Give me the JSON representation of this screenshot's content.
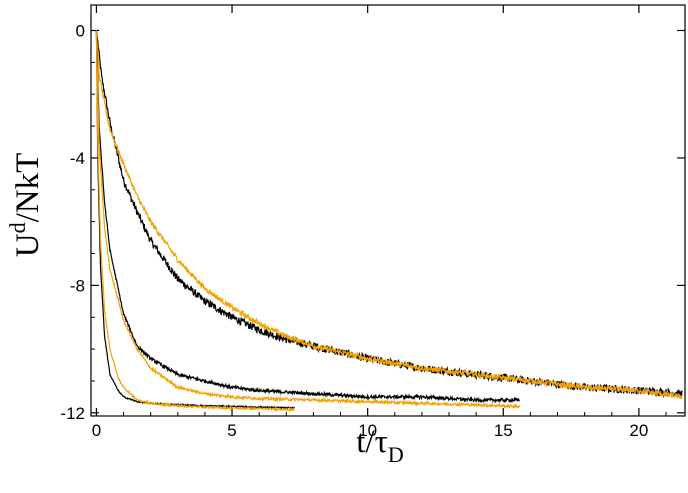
{
  "chart_data": {
    "type": "line",
    "xlabel": {
      "main": "t/τ",
      "sub": "D"
    },
    "ylabel": {
      "main": "U",
      "sup": "d",
      "rest": "/NkT"
    },
    "xlim": [
      -0.2,
      21.7
    ],
    "ylim": [
      -12.1,
      0.8
    ],
    "x_ticks": [
      0,
      5,
      10,
      15,
      20
    ],
    "y_ticks": [
      0,
      -4,
      -8,
      -12
    ],
    "x_tick_labels": [
      "0",
      "5",
      "10",
      "15",
      "20"
    ],
    "y_tick_labels": [
      "0",
      "-4",
      "-8",
      "-12"
    ],
    "grid": false,
    "legend": "none",
    "series": [
      {
        "color": "#000000",
        "noise": 0.12,
        "x": [
          0,
          0.2,
          0.5,
          1,
          1.5,
          2,
          3,
          4,
          5,
          6,
          7,
          8,
          10,
          12,
          14,
          16,
          18,
          20,
          21.6
        ],
        "y": [
          0,
          -1.5,
          -2.9,
          -4.7,
          -5.7,
          -6.6,
          -7.8,
          -8.5,
          -9.0,
          -9.4,
          -9.7,
          -9.9,
          -10.3,
          -10.6,
          -10.8,
          -11.0,
          -11.2,
          -11.3,
          -11.4
        ]
      },
      {
        "color": "#f5a000",
        "noise": 0.08,
        "x": [
          0,
          0.1,
          0.3,
          0.5,
          1,
          1.5,
          2,
          3,
          4,
          5,
          6,
          7,
          8,
          10,
          12,
          14,
          16,
          18,
          20,
          21.6
        ],
        "y": [
          0,
          -1.4,
          -2.3,
          -3.1,
          -4.2,
          -5.2,
          -6.0,
          -7.2,
          -8.1,
          -8.7,
          -9.2,
          -9.6,
          -9.9,
          -10.3,
          -10.6,
          -10.8,
          -11.0,
          -11.2,
          -11.3,
          -11.5
        ]
      },
      {
        "color": "#000000",
        "noise": 0.05,
        "x": [
          0,
          0.1,
          0.3,
          0.5,
          1,
          1.5,
          2,
          3,
          4,
          5,
          6,
          8,
          10,
          12,
          14,
          15.6
        ],
        "y": [
          0,
          -3.0,
          -5.4,
          -6.9,
          -8.9,
          -9.9,
          -10.3,
          -10.8,
          -11.0,
          -11.2,
          -11.3,
          -11.4,
          -11.5,
          -11.5,
          -11.6,
          -11.6
        ]
      },
      {
        "color": "#f5a000",
        "noise": 0.04,
        "x": [
          0,
          0.1,
          0.3,
          0.5,
          1,
          1.5,
          2,
          3,
          4,
          5,
          6,
          8,
          10,
          12,
          14,
          15.6
        ],
        "y": [
          0,
          -3.6,
          -6.2,
          -7.5,
          -9.1,
          -10.0,
          -10.6,
          -11.2,
          -11.4,
          -11.5,
          -11.55,
          -11.6,
          -11.65,
          -11.7,
          -11.75,
          -11.8
        ]
      },
      {
        "color": "#000000",
        "noise": 0.02,
        "x": [
          0,
          0.05,
          0.15,
          0.3,
          0.5,
          0.8,
          1,
          1.5,
          2,
          3,
          4,
          5,
          6,
          7.3
        ],
        "y": [
          0,
          -4.0,
          -7.4,
          -9.6,
          -10.8,
          -11.3,
          -11.5,
          -11.65,
          -11.7,
          -11.75,
          -11.78,
          -11.8,
          -11.82,
          -11.85
        ]
      },
      {
        "color": "#f5a000",
        "noise": 0.03,
        "x": [
          0,
          0.05,
          0.15,
          0.3,
          0.5,
          0.8,
          1,
          1.5,
          2,
          3,
          4,
          5,
          6,
          7.3
        ],
        "y": [
          0,
          -3.5,
          -6.6,
          -8.8,
          -10.0,
          -10.9,
          -11.2,
          -11.6,
          -11.7,
          -11.78,
          -11.82,
          -11.85,
          -11.87,
          -11.9
        ]
      }
    ]
  }
}
